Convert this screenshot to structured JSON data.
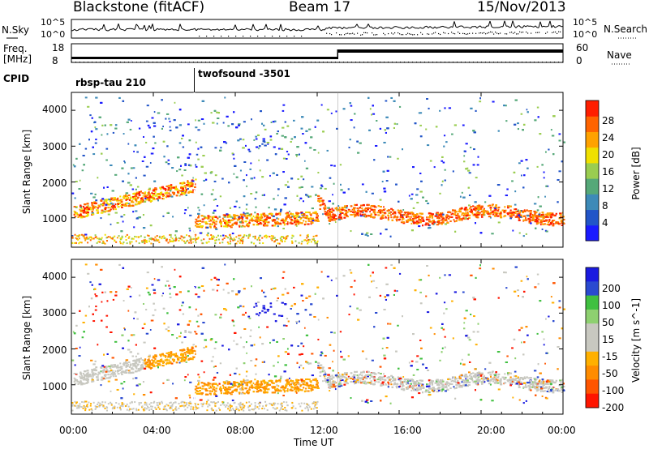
{
  "header": {
    "station": "Blackstone (fitACF)",
    "beam": "Beam 17",
    "date": "15/Nov/2013"
  },
  "noise_panel": {
    "left_label": "N.Sky",
    "right_label": "N.Search",
    "left_ticks": [
      "10^5",
      "10^0"
    ],
    "right_ticks": [
      "10^5",
      "10^0"
    ]
  },
  "freq_panel": {
    "left_label_line1": "Freq.",
    "left_label_line2": "[MHz]",
    "left_ticks": [
      "18",
      "8"
    ],
    "right_label": "Nave",
    "right_ticks": [
      "60",
      "0"
    ]
  },
  "cpid": {
    "label": "CPID",
    "modes": [
      {
        "name": "rbsp-tau 210",
        "start_hour": 0
      },
      {
        "name": "twofsound -3501",
        "start_hour": 6
      }
    ]
  },
  "colors": {
    "power": [
      "#1a1aff",
      "#2255c8",
      "#3d8ab8",
      "#55a878",
      "#9acd50",
      "#f0e000",
      "#ffa200",
      "#ff6400",
      "#ff1e00"
    ],
    "velocity": [
      "#1a1ae0",
      "#2a4ad0",
      "#40c040",
      "#8ed070",
      "#c8c8c0",
      "#c8c8c0",
      "#ffb000",
      "#ff8c00",
      "#ff5500",
      "#ff1500"
    ]
  },
  "chart_data": [
    {
      "type": "heatmap",
      "name": "power",
      "ylabel": "Slant Range [km]",
      "yticks": [
        "1000",
        "2000",
        "3000",
        "4000"
      ],
      "colorbar_label": "Power [dB]",
      "colorbar_ticks": [
        "4",
        "8",
        "12",
        "16",
        "20",
        "24",
        "28"
      ],
      "colorbar_range": [
        0,
        32
      ],
      "ylim": [
        180,
        4500
      ],
      "xlim_hours": [
        0,
        24
      ],
      "features": [
        {
          "description": "strong ionospheric backscatter band",
          "time_range": [
            "00:00",
            "06:00"
          ],
          "range_km": [
            1100,
            1800
          ]
        },
        {
          "description": "main scatter band after 12:00",
          "time_range": [
            "12:15",
            "24:00"
          ],
          "range_km": [
            900,
            1500
          ]
        }
      ]
    },
    {
      "type": "heatmap",
      "name": "velocity",
      "ylabel": "Slant Range [km]",
      "yticks": [
        "1000",
        "2000",
        "3000",
        "4000"
      ],
      "colorbar_label": "Velocity [m s^-1]",
      "colorbar_ticks": [
        "200",
        "100",
        "50",
        "15",
        "-15",
        "-50",
        "-100",
        "-200"
      ],
      "ylim": [
        180,
        4500
      ],
      "xlim_hours": [
        0,
        24
      ]
    },
    {
      "type": "line",
      "name": "time_axis",
      "xlabel": "Time UT",
      "xticks": [
        "00:00",
        "04:00",
        "08:00",
        "12:00",
        "16:00",
        "20:00",
        "00:00"
      ],
      "xtick_hours": [
        0,
        4,
        8,
        12,
        16,
        20,
        24
      ]
    }
  ]
}
